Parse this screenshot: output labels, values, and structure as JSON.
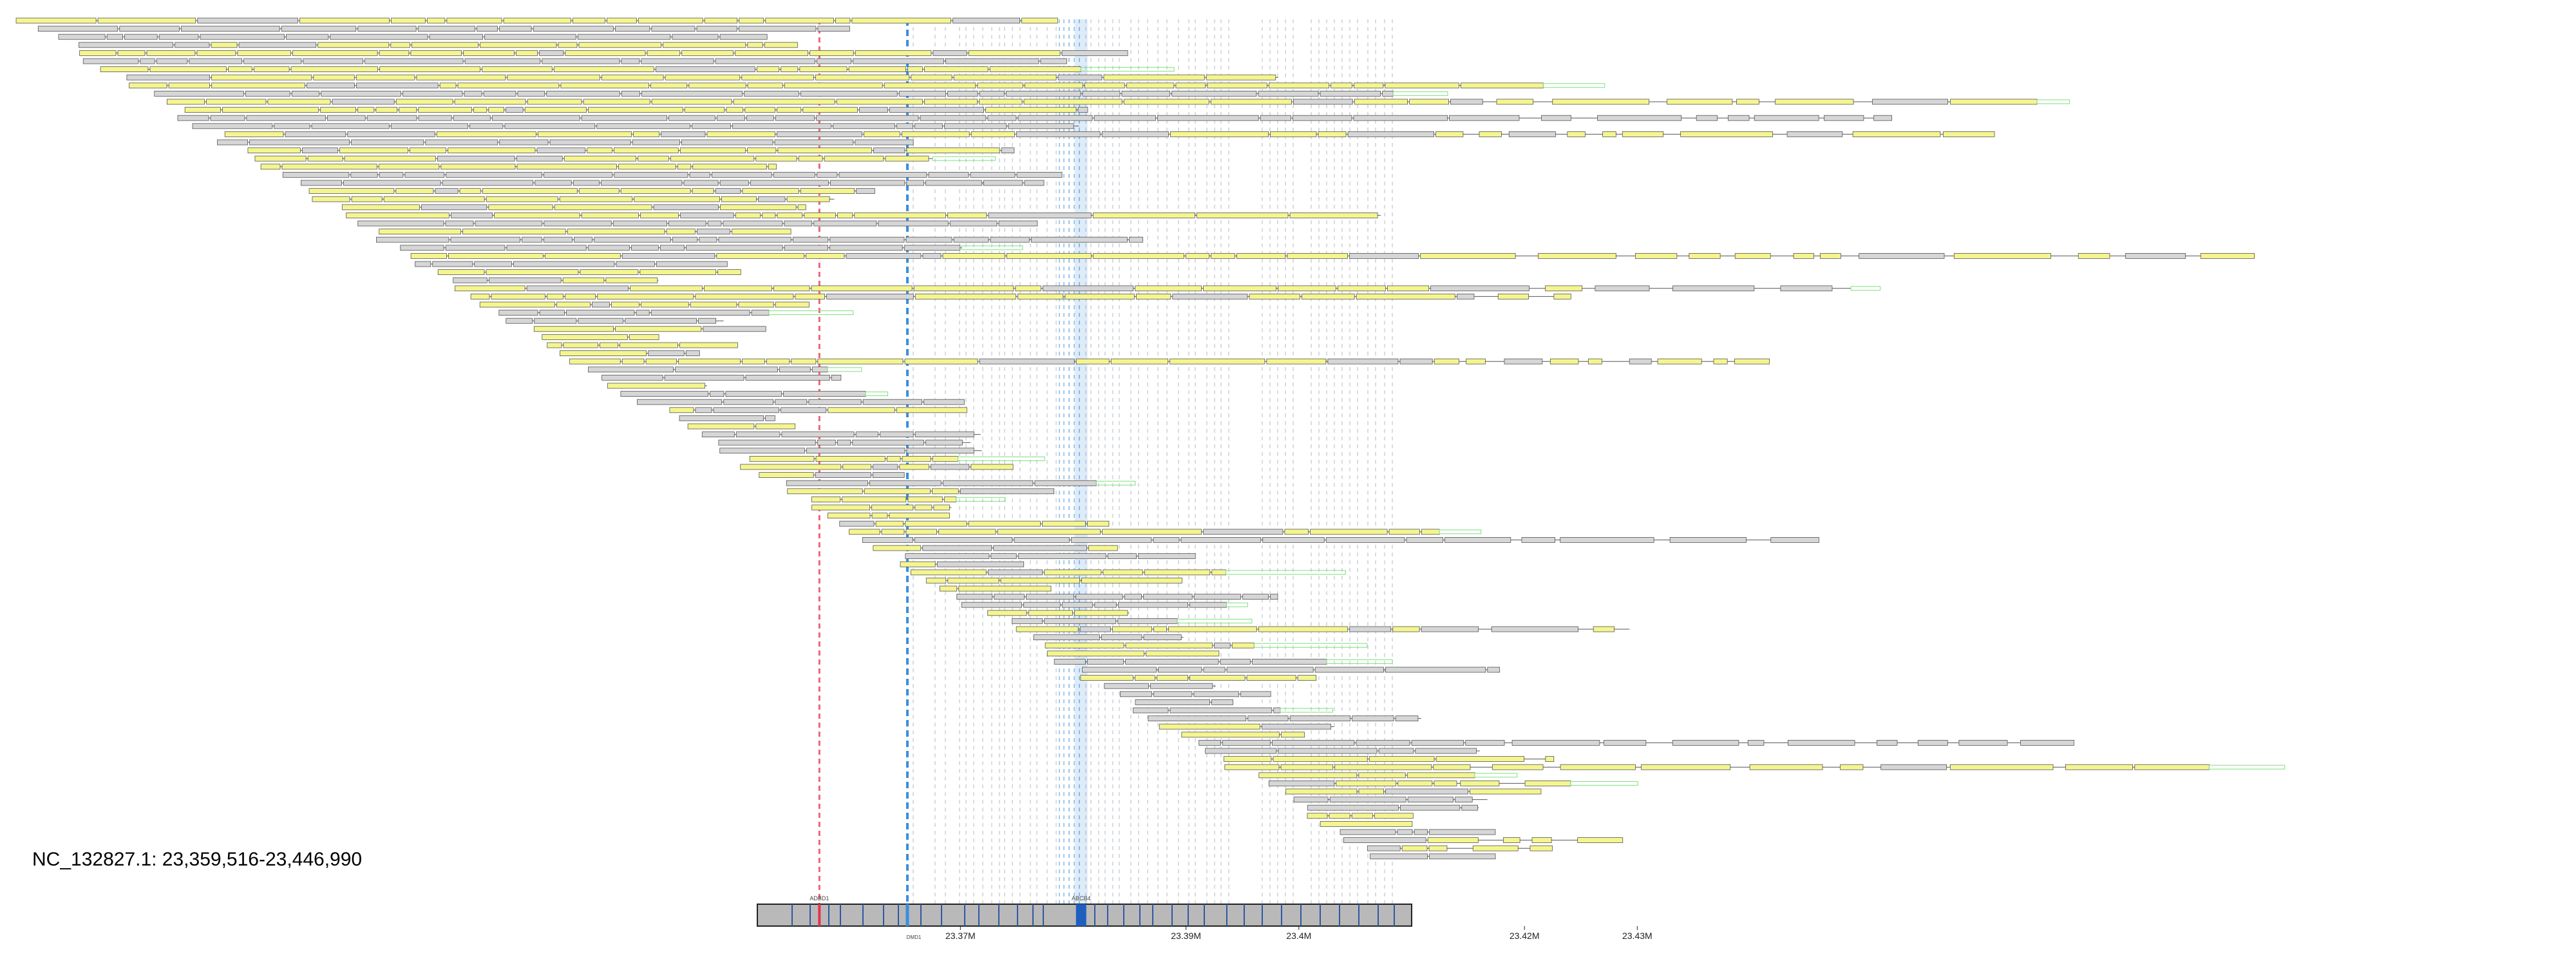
{
  "region": {
    "label": "NC_132827.1: 23,359,516-23,446,990",
    "chrom": "NC_132827.1",
    "start": 23359516,
    "end": 23446990
  },
  "axis": {
    "ticks": [
      {
        "label": "23.37M",
        "pos": 23370000
      },
      {
        "label": "23.39M",
        "pos": 23390000
      },
      {
        "label": "23.4M",
        "pos": 23400000
      },
      {
        "label": "23.42M",
        "pos": 23420000
      },
      {
        "label": "23.43M",
        "pos": 23430000
      }
    ],
    "genome_window": [
      23352000,
      23410000
    ]
  },
  "markers": {
    "red": {
      "label": "ADBD1",
      "pos": 23357500
    },
    "blue": {
      "label": "DMD1",
      "pos": 23365300
    },
    "dark_blue": {
      "label": "ABCB4",
      "pos": 23380700
    }
  },
  "colors": {
    "coding": "#f5f58f",
    "noncoding": "#d6d6d6",
    "outline": "#555555",
    "utr": "#7fdf7f",
    "red": "#e8324b",
    "blue": "#3a8fe0",
    "axis_bar": "#b9b9b9"
  }
}
